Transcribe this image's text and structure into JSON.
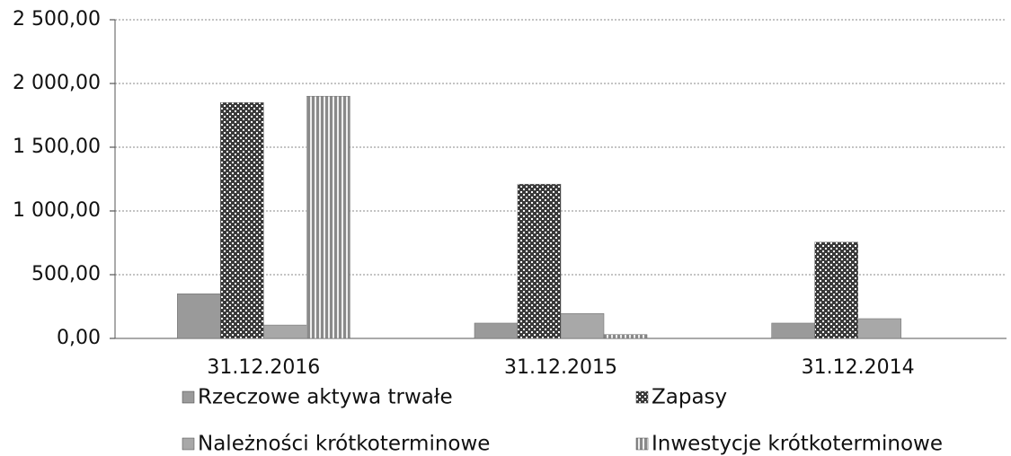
{
  "chart_data": {
    "type": "bar",
    "categories": [
      "31.12.2016",
      "31.12.2015",
      "31.12.2014"
    ],
    "series": [
      {
        "name": "Rzeczowe aktywa trwałe",
        "color": "#9a9a9a",
        "pattern": "solid",
        "values": [
          350,
          120,
          120
        ]
      },
      {
        "name": "Zapasy",
        "color": "#3a3a3a",
        "pattern": "crosshatch",
        "values": [
          1850,
          1210,
          755
        ]
      },
      {
        "name": "Należności krótkoterminowe",
        "color": "#a8a8a8",
        "pattern": "solid",
        "values": [
          105,
          195,
          155
        ]
      },
      {
        "name": "Inwestycje krótkoterminowe",
        "color": "#8a8a8a",
        "pattern": "stripes",
        "values": [
          1900,
          30,
          null
        ]
      }
    ],
    "ylim": [
      0,
      2500
    ],
    "yticks": [
      {
        "value": 0,
        "label": "0,00"
      },
      {
        "value": 500,
        "label": "500,00"
      },
      {
        "value": 1000,
        "label": "1 000,00"
      },
      {
        "value": 1500,
        "label": "1 500,00"
      },
      {
        "value": 2000,
        "label": "2 000,00"
      },
      {
        "value": 2500,
        "label": "2 500,00"
      }
    ],
    "grid": true,
    "legend": "bottom"
  }
}
